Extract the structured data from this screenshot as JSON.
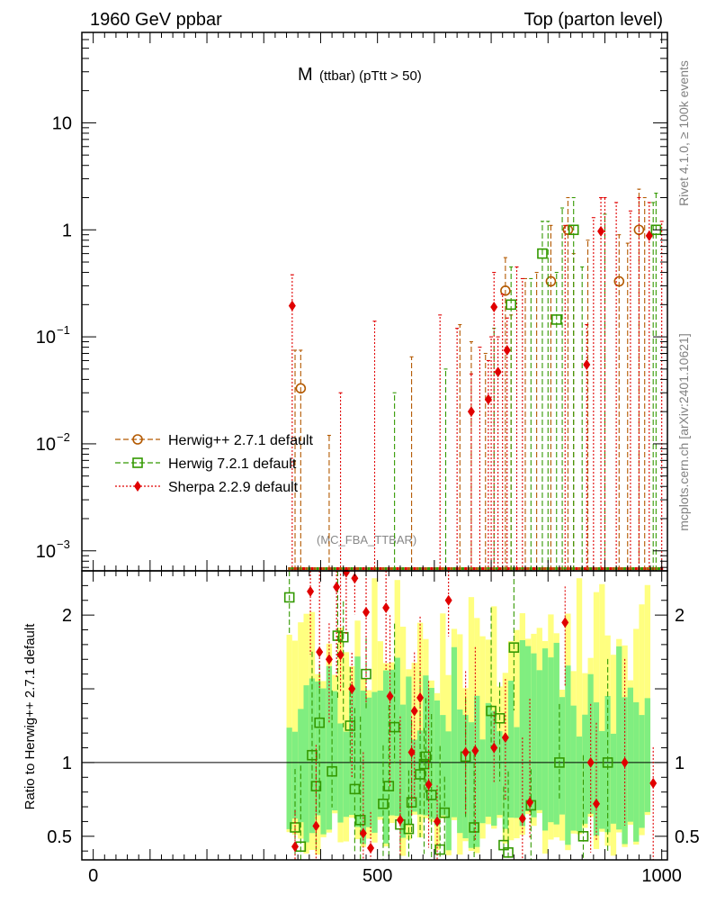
{
  "header": {
    "left_title": "1960 GeV ppbar",
    "right_title": "Top (parton level)"
  },
  "side_labels": {
    "rivet": "Rivet 4.1.0, ≥ 100k events",
    "mcplots": "mcplots.cern.ch [arXiv:2401.10621]"
  },
  "chart_data": [
    {
      "type": "scatter",
      "panel": "main",
      "title_main": "M",
      "title_sub": "(ttbar) (pTtt > 50)",
      "analysis_label": "(MC_FBA_TTBAR)",
      "yscale": "log",
      "xlim": [
        -20,
        1010
      ],
      "ylim": [
        0.00065,
        70
      ],
      "y_tick_labels": [
        {
          "v": 10,
          "text": "10"
        },
        {
          "v": 1,
          "text": "1"
        },
        {
          "v": 0.1,
          "text": "10",
          "exp": "−1"
        },
        {
          "v": 0.01,
          "text": "10",
          "exp": "−2"
        },
        {
          "v": 0.001,
          "text": "10",
          "exp": "−3"
        }
      ],
      "legend": [
        {
          "label": "Herwig++ 2.7.1 default",
          "color": "#b35900",
          "marker": "circle",
          "dash": "6,3"
        },
        {
          "label": "Herwig 7.2.1 default",
          "color": "#339900",
          "marker": "square",
          "dash": "6,3"
        },
        {
          "label": "Sherpa 2.2.9 default",
          "color": "#e00000",
          "marker": "diamond",
          "dash": "2,2"
        }
      ],
      "series": [
        {
          "name": "Herwig++ 2.7.1 default",
          "color": "#b35900",
          "points": [
            [
              365,
              0.033,
              0.075
            ],
            [
              725,
              0.27,
              0.55
            ],
            [
              805,
              0.33,
              1.1
            ],
            [
              835,
              1.0,
              2.0
            ],
            [
              925,
              0.33,
              0.9
            ],
            [
              960,
              1.0,
              2.4
            ]
          ],
          "spikes": [
            [
              355,
              0.075
            ],
            [
              415,
              0.012
            ],
            [
              560,
              0.065
            ],
            [
              645,
              0.13
            ],
            [
              665,
              0.09
            ],
            [
              690,
              0.07
            ],
            [
              735,
              0.16
            ],
            [
              760,
              0.35
            ],
            [
              780,
              0.4
            ],
            [
              845,
              0.6
            ],
            [
              870,
              0.8
            ],
            [
              940,
              0.75
            ],
            [
              970,
              2.0
            ]
          ]
        },
        {
          "name": "Herwig 7.2.1 default",
          "color": "#339900",
          "points": [
            [
              735,
              0.2,
              0.45
            ],
            [
              790,
              0.6,
              1.2
            ],
            [
              815,
              0.145,
              0.4
            ],
            [
              845,
              1.0,
              2.0
            ],
            [
              990,
              1.0,
              2.2
            ]
          ],
          "spikes": [
            [
              530,
              0.03
            ],
            [
              620,
              0.05
            ],
            [
              705,
              0.12
            ],
            [
              770,
              0.35
            ],
            [
              800,
              1.2
            ],
            [
              825,
              1.6
            ],
            [
              860,
              0.45
            ],
            [
              900,
              1.4
            ],
            [
              985,
              1.8
            ]
          ]
        },
        {
          "name": "Sherpa 2.2.9 default",
          "color": "#e00000",
          "points": [
            [
              350,
              0.195,
              0.38
            ],
            [
              665,
              0.02,
              0.045
            ],
            [
              695,
              0.026,
              0.06
            ],
            [
              705,
              0.19,
              0.4
            ],
            [
              712,
              0.047,
              0.1
            ],
            [
              728,
              0.075,
              0.15
            ],
            [
              868,
              0.055,
              0.13
            ],
            [
              893,
              0.97,
              2.0
            ],
            [
              978,
              0.88,
              1.8
            ]
          ],
          "spikes": [
            [
              435,
              0.03
            ],
            [
              495,
              0.14
            ],
            [
              610,
              0.16
            ],
            [
              640,
              0.12
            ],
            [
              680,
              0.08
            ],
            [
              700,
              0.1
            ],
            [
              720,
              0.25
            ],
            [
              745,
              0.45
            ],
            [
              755,
              0.35
            ],
            [
              830,
              1.1
            ],
            [
              880,
              1.3
            ],
            [
              900,
              2.0
            ],
            [
              920,
              1.8
            ],
            [
              945,
              1.5
            ],
            [
              960,
              2.0
            ],
            [
              1000,
              1.2
            ]
          ]
        }
      ]
    },
    {
      "type": "scatter",
      "panel": "ratio",
      "ylabel": "Ratio to Herwig++ 2.7.1 default",
      "xlim": [
        -20,
        1010
      ],
      "ylim": [
        0.34,
        2.3
      ],
      "reference_line": 1,
      "x_tick_labels": [
        0,
        500,
        1000
      ],
      "y_tick_labels": [
        0.5,
        1,
        2
      ],
      "band": {
        "x_range": [
          340,
          980
        ],
        "bin_width": 10,
        "yellow_range": [
          0.36,
          2.25
        ],
        "green_range": [
          0.42,
          1.85
        ],
        "yellow_color": "#ffff80",
        "green_color": "#80ee80"
      },
      "series": [
        {
          "name": "Herwig 7.2.1 default",
          "color": "#339900",
          "points": [
            [
              345,
              2.12
            ],
            [
              355,
              0.56
            ],
            [
              365,
              0.43
            ],
            [
              385,
              1.05
            ],
            [
              392,
              0.84
            ],
            [
              398,
              1.27
            ],
            [
              420,
              0.94
            ],
            [
              430,
              1.86
            ],
            [
              440,
              1.85
            ],
            [
              452,
              1.25
            ],
            [
              460,
              0.82
            ],
            [
              470,
              0.61
            ],
            [
              480,
              1.6
            ],
            [
              510,
              0.72
            ],
            [
              520,
              0.84
            ],
            [
              530,
              1.24
            ],
            [
              540,
              0.58
            ],
            [
              555,
              0.55
            ],
            [
              560,
              0.73
            ],
            [
              575,
              0.92
            ],
            [
              582,
              0.99
            ],
            [
              585,
              1.04
            ],
            [
              595,
              0.78
            ],
            [
              610,
              0.41
            ],
            [
              618,
              0.66
            ],
            [
              655,
              1.04
            ],
            [
              670,
              0.56
            ],
            [
              700,
              1.35
            ],
            [
              715,
              1.3
            ],
            [
              722,
              0.44
            ],
            [
              730,
              0.39
            ],
            [
              740,
              1.78
            ],
            [
              770,
              0.71
            ],
            [
              820,
              1.0
            ],
            [
              862,
              0.5
            ],
            [
              905,
              1.0
            ]
          ]
        },
        {
          "name": "Sherpa 2.2.9 default",
          "color": "#e00000",
          "points": [
            [
              355,
              0.43
            ],
            [
              382,
              2.16
            ],
            [
              392,
              0.57
            ],
            [
              398,
              1.75
            ],
            [
              415,
              1.7
            ],
            [
              428,
              2.19
            ],
            [
              435,
              1.73
            ],
            [
              445,
              2.29
            ],
            [
              455,
              1.5
            ],
            [
              460,
              2.25
            ],
            [
              475,
              0.52
            ],
            [
              480,
              2.02
            ],
            [
              488,
              0.42
            ],
            [
              515,
              2.05
            ],
            [
              522,
              1.45
            ],
            [
              540,
              0.61
            ],
            [
              560,
              1.07
            ],
            [
              565,
              1.35
            ],
            [
              575,
              1.44
            ],
            [
              590,
              0.85
            ],
            [
              605,
              0.6
            ],
            [
              625,
              2.1
            ],
            [
              655,
              1.07
            ],
            [
              672,
              1.08
            ],
            [
              705,
              1.1
            ],
            [
              725,
              1.17
            ],
            [
              755,
              0.62
            ],
            [
              768,
              0.73
            ],
            [
              830,
              1.95
            ],
            [
              875,
              1.0
            ],
            [
              885,
              0.72
            ],
            [
              935,
              1.0
            ],
            [
              985,
              0.86
            ]
          ]
        }
      ]
    }
  ]
}
